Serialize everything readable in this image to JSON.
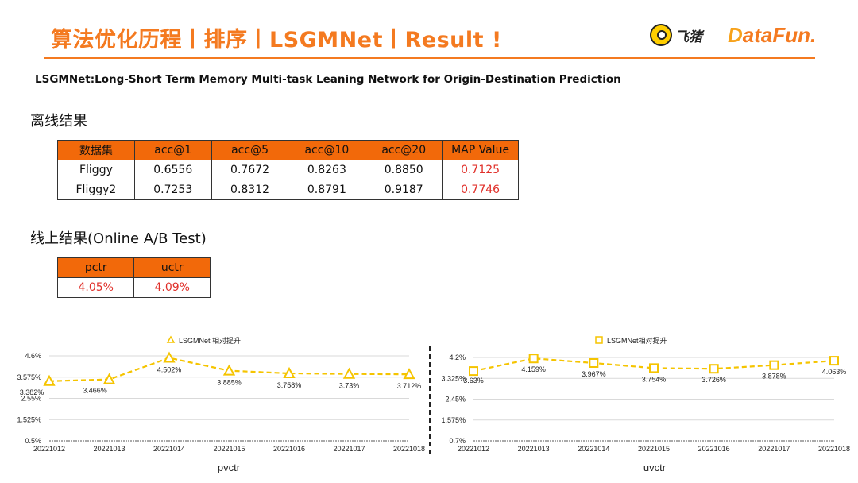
{
  "header": {
    "title": "算法优化历程丨排序丨LSGMNet丨Result !",
    "logo_fliggy_text": "飞猪",
    "logo_datafun_d": "D",
    "logo_datafun_rest": "ataFun."
  },
  "subtitle": "LSGMNet:Long-Short Term Memory Multi-task Leaning Network for Origin-Destination Prediction",
  "offline": {
    "heading": "离线结果",
    "columns": [
      "数据集",
      "acc@1",
      "acc@5",
      "acc@10",
      "acc@20",
      "MAP Value"
    ],
    "rows": [
      [
        "Fliggy",
        "0.6556",
        "0.7672",
        "0.8263",
        "0.8850",
        "0.7125"
      ],
      [
        "Fliggy2",
        "0.7253",
        "0.8312",
        "0.8791",
        "0.9187",
        "0.7746"
      ]
    ],
    "highlight_color": "#e0302a",
    "header_color": "#f2690a"
  },
  "online": {
    "heading": "线上结果(Online A/B Test)",
    "columns": [
      "pctr",
      "uctr"
    ],
    "values": [
      "4.05%",
      "4.09%"
    ]
  },
  "chart_data": [
    {
      "type": "line",
      "xlabel": "pvctr",
      "x": [
        "20221012",
        "20221013",
        "20221014",
        "20221015",
        "20221016",
        "20221017",
        "20221018"
      ],
      "series": [
        {
          "name": "LSGMNet 相对提升",
          "values": [
            3.382,
            3.466,
            4.502,
            3.885,
            3.758,
            3.73,
            3.712
          ],
          "labels": [
            "3.382%",
            "3.466%",
            "4.502%",
            "3.885%",
            "3.758%",
            "3.73%",
            "3.712%"
          ],
          "marker": "triangle",
          "color": "#f5c400"
        }
      ],
      "yticks": [
        "0.5%",
        "1.525%",
        "2.55%",
        "3.575%",
        "4.6%"
      ],
      "ylim": [
        0.5,
        4.6
      ],
      "legend": "top-center",
      "grid": true
    },
    {
      "type": "line",
      "xlabel": "uvctr",
      "x": [
        "20221012",
        "20221013",
        "20221014",
        "20221015",
        "20221016",
        "20221017",
        "20221018"
      ],
      "series": [
        {
          "name": "LSGMNet相对提升",
          "values": [
            3.63,
            4.159,
            3.967,
            3.754,
            3.726,
            3.878,
            4.063
          ],
          "labels": [
            "3.63%",
            "4.159%",
            "3.967%",
            "3.754%",
            "3.726%",
            "3.878%",
            "4.063%"
          ],
          "marker": "square",
          "color": "#f5c400"
        }
      ],
      "yticks": [
        "0.7%",
        "1.575%",
        "2.45%",
        "3.325%",
        "4.2%"
      ],
      "ylim": [
        0.7,
        4.2
      ],
      "legend": "top-center",
      "grid": true
    }
  ]
}
